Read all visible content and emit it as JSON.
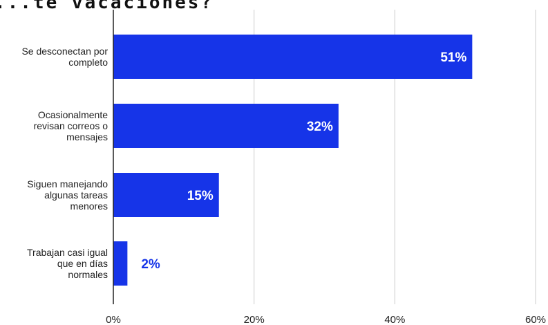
{
  "chart_data": {
    "type": "bar",
    "orientation": "horizontal",
    "title": "...te vacaciones?",
    "categories": [
      [
        "Se desconectan por",
        "completo"
      ],
      [
        "Ocasionalmente",
        "revisan correos o",
        "mensajes"
      ],
      [
        "Siguen manejando",
        "algunas tareas",
        "menores"
      ],
      [
        "Trabajan casi igual",
        "que en días",
        "normales"
      ]
    ],
    "values": [
      51,
      32,
      15,
      2
    ],
    "value_labels": [
      "51%",
      "32%",
      "15%",
      "2%"
    ],
    "xlim": [
      0,
      60
    ],
    "xticks": [
      0,
      20,
      40,
      60
    ],
    "xtick_labels": [
      "0%",
      "20%",
      "40%",
      "60%"
    ],
    "grid": true,
    "legend": "none",
    "colors": {
      "bar": "#1634e8",
      "label_inside": "#ffffff",
      "label_outside": "#1634e8",
      "gridline": "#cccccc",
      "axis": "#222222"
    }
  }
}
